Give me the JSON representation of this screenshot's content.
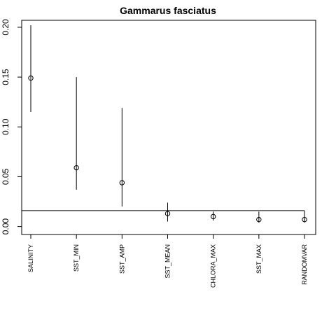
{
  "chart_data": {
    "type": "scatter",
    "title": "Gammarus fasciatus",
    "xlabel": "",
    "ylabel": "",
    "categories": [
      "SALINITY",
      "SST_MIN",
      "SST_AMP",
      "SST_MEAN",
      "CHLORA_MAX",
      "SST_MAX",
      "RANDOMVAR"
    ],
    "points": [
      0.149,
      0.059,
      0.044,
      0.013,
      0.01,
      0.007,
      0.007
    ],
    "upper": [
      0.202,
      0.15,
      0.119,
      0.024,
      0.015,
      0.015,
      0.016
    ],
    "lower": [
      0.115,
      0.037,
      0.02,
      0.005,
      0.006,
      0.004,
      0.004
    ],
    "threshold": 0.016,
    "ylim": [
      -0.008,
      0.207
    ],
    "yticks": [
      "0.00",
      "0.05",
      "0.10",
      "0.15",
      "0.20"
    ],
    "ytick_values": [
      0,
      0.05,
      0.1,
      0.15,
      0.2
    ],
    "grid": false,
    "legend": "none"
  }
}
